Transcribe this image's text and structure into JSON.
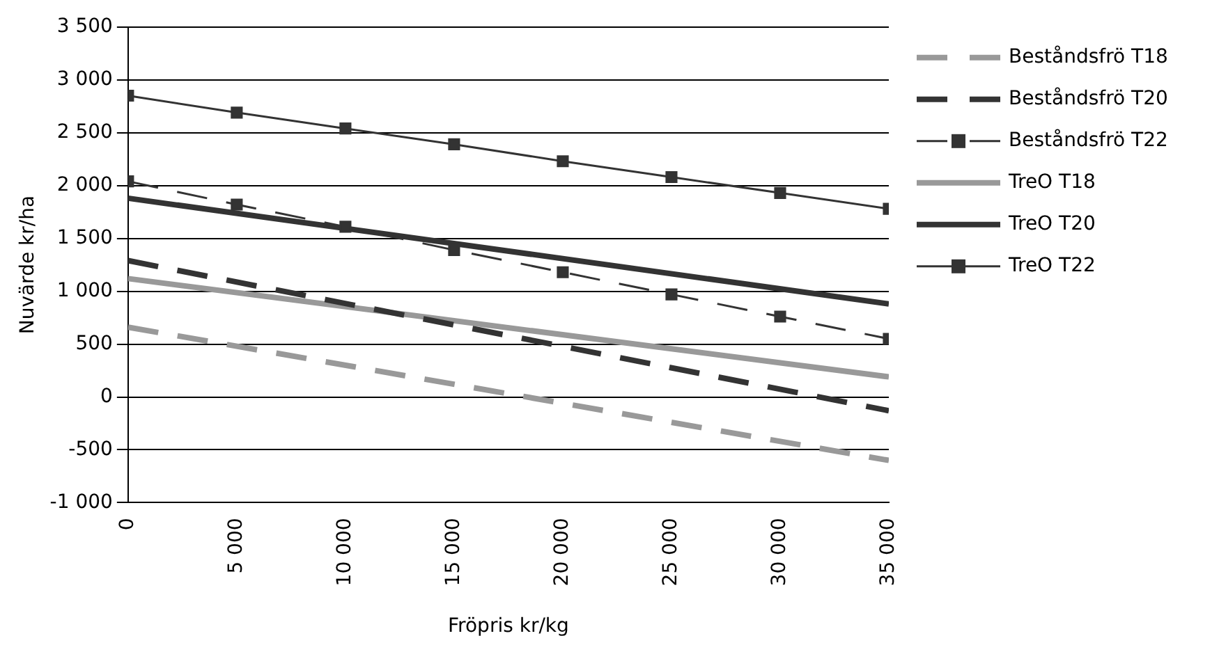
{
  "chart_data": {
    "type": "line",
    "xlabel": "Fröpris kr/kg",
    "ylabel": "Nuvärde kr/ha",
    "xlim": [
      0,
      35000
    ],
    "xticks": [
      {
        "value": 0,
        "label": "0"
      },
      {
        "value": 5000,
        "label": "5 000"
      },
      {
        "value": 10000,
        "label": "10 000"
      },
      {
        "value": 15000,
        "label": "15 000"
      },
      {
        "value": 20000,
        "label": "20 000"
      },
      {
        "value": 25000,
        "label": "25 000"
      },
      {
        "value": 30000,
        "label": "30 000"
      },
      {
        "value": 35000,
        "label": "35 000"
      }
    ],
    "ylim": [
      -1000,
      3500
    ],
    "yticks": [
      {
        "value": -1000,
        "label": "-1 000"
      },
      {
        "value": -500,
        "label": "-500"
      },
      0,
      500,
      {
        "value": 1000,
        "label": "1 000"
      },
      {
        "value": 1500,
        "label": "1 500"
      },
      {
        "value": 2000,
        "label": "2 000"
      },
      {
        "value": 2500,
        "label": "2 500"
      },
      {
        "value": 3000,
        "label": "3 000"
      },
      {
        "value": 3500,
        "label": "3 500"
      }
    ],
    "grid": "y",
    "legend": "right",
    "series": [
      {
        "name": "Beståndsfrö T18",
        "color": "#999999",
        "line_style": "dashed",
        "marker": "none",
        "x": [
          0,
          35000
        ],
        "values": [
          660,
          -600
        ]
      },
      {
        "name": "Beståndsfrö T20",
        "color": "#333333",
        "line_style": "dashed",
        "marker": "none",
        "x": [
          0,
          35000
        ],
        "values": [
          1290,
          -130
        ]
      },
      {
        "name": "Beståndsfrö T22",
        "color": "#333333",
        "line_style": "dashed",
        "marker": "square",
        "x": [
          0,
          5000,
          10000,
          15000,
          20000,
          25000,
          30000,
          35000
        ],
        "values": [
          2040,
          1820,
          1610,
          1390,
          1180,
          970,
          760,
          550
        ]
      },
      {
        "name": "TreO T18",
        "color": "#999999",
        "line_style": "solid",
        "marker": "none",
        "x": [
          0,
          35000
        ],
        "values": [
          1120,
          190
        ]
      },
      {
        "name": "TreO T20",
        "color": "#333333",
        "line_style": "solid",
        "marker": "none",
        "x": [
          0,
          35000
        ],
        "values": [
          1880,
          880
        ]
      },
      {
        "name": "TreO T22",
        "color": "#333333",
        "line_style": "solid",
        "marker": "square",
        "x": [
          0,
          5000,
          10000,
          15000,
          20000,
          25000,
          30000,
          35000
        ],
        "values": [
          2850,
          2690,
          2540,
          2390,
          2230,
          2080,
          1930,
          1780
        ]
      }
    ]
  }
}
